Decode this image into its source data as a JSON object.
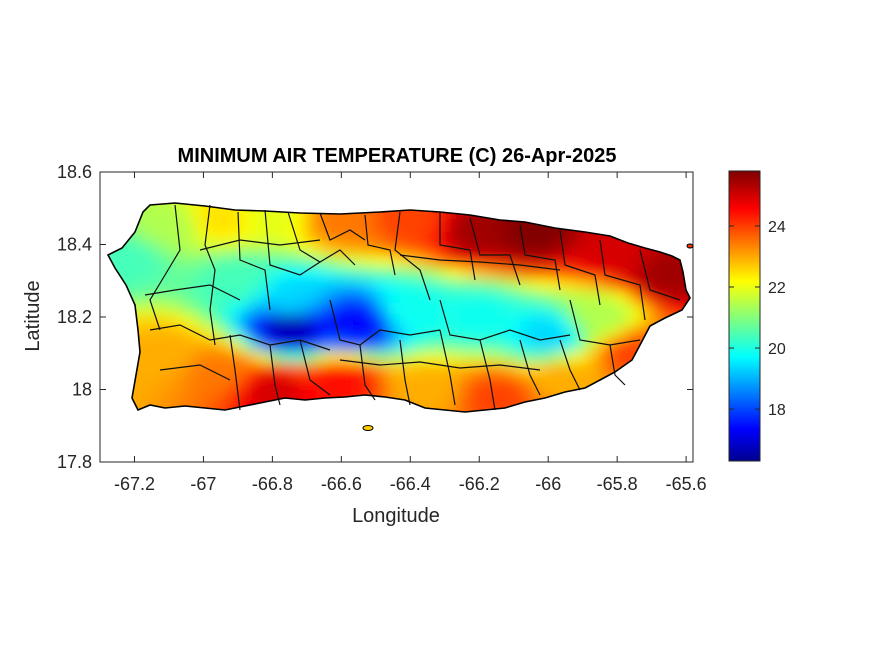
{
  "chart_data": {
    "type": "heatmap",
    "title": "MINIMUM AIR TEMPERATURE (C) 26-Apr-2025",
    "xlabel": "Longitude",
    "ylabel": "Latitude",
    "xlim": [
      -67.3,
      -65.58
    ],
    "ylim": [
      17.8,
      18.6
    ],
    "x_ticks": [
      -67.2,
      -67,
      -66.8,
      -66.6,
      -66.4,
      -66.2,
      -66,
      -65.8,
      -65.6
    ],
    "x_tick_labels": [
      "-67.2",
      "-67",
      "-66.8",
      "-66.6",
      "-66.4",
      "-66.2",
      "-66",
      "-65.8",
      "-65.6"
    ],
    "y_ticks": [
      18.6,
      18.4,
      18.2,
      18,
      17.8
    ],
    "y_tick_labels": [
      "18.6",
      "18.4",
      "18.2",
      "18",
      "17.8"
    ],
    "colorbar": {
      "colormap": "jet",
      "range": [
        16.3,
        25.8
      ],
      "ticks": [
        18,
        20,
        22,
        24
      ],
      "tick_labels": [
        "18",
        "20",
        "22",
        "24"
      ]
    },
    "grid": false,
    "region": "Puerto Rico with municipality boundaries",
    "field_samples": [
      {
        "lon": -67.22,
        "lat": 18.36,
        "value": 20.5
      },
      {
        "lon": -67.1,
        "lat": 18.45,
        "value": 21.5
      },
      {
        "lon": -66.95,
        "lat": 18.47,
        "value": 22.5
      },
      {
        "lon": -66.8,
        "lat": 18.48,
        "value": 22.0
      },
      {
        "lon": -66.6,
        "lat": 18.47,
        "value": 23.5
      },
      {
        "lon": -66.4,
        "lat": 18.47,
        "value": 24.0
      },
      {
        "lon": -66.2,
        "lat": 18.44,
        "value": 25.5
      },
      {
        "lon": -66.05,
        "lat": 18.44,
        "value": 25.8
      },
      {
        "lon": -65.8,
        "lat": 18.38,
        "value": 25.0
      },
      {
        "lon": -65.65,
        "lat": 18.32,
        "value": 25.5
      },
      {
        "lon": -66.9,
        "lat": 18.3,
        "value": 20.5
      },
      {
        "lon": -66.75,
        "lat": 18.25,
        "value": 19.5
      },
      {
        "lon": -66.75,
        "lat": 18.17,
        "value": 16.8
      },
      {
        "lon": -66.55,
        "lat": 18.18,
        "value": 17.5
      },
      {
        "lon": -66.4,
        "lat": 18.22,
        "value": 20.0
      },
      {
        "lon": -66.2,
        "lat": 18.2,
        "value": 20.0
      },
      {
        "lon": -66.0,
        "lat": 18.15,
        "value": 19.5
      },
      {
        "lon": -65.85,
        "lat": 18.2,
        "value": 21.5
      },
      {
        "lon": -65.75,
        "lat": 18.1,
        "value": 24.0
      },
      {
        "lon": -67.12,
        "lat": 18.1,
        "value": 23.0
      },
      {
        "lon": -66.95,
        "lat": 18.05,
        "value": 23.5
      },
      {
        "lon": -66.8,
        "lat": 18.0,
        "value": 25.0
      },
      {
        "lon": -66.6,
        "lat": 18.02,
        "value": 24.5
      },
      {
        "lon": -66.35,
        "lat": 18.0,
        "value": 23.0
      },
      {
        "lon": -66.15,
        "lat": 17.98,
        "value": 24.0
      },
      {
        "lon": -65.95,
        "lat": 18.03,
        "value": 23.0
      }
    ]
  }
}
